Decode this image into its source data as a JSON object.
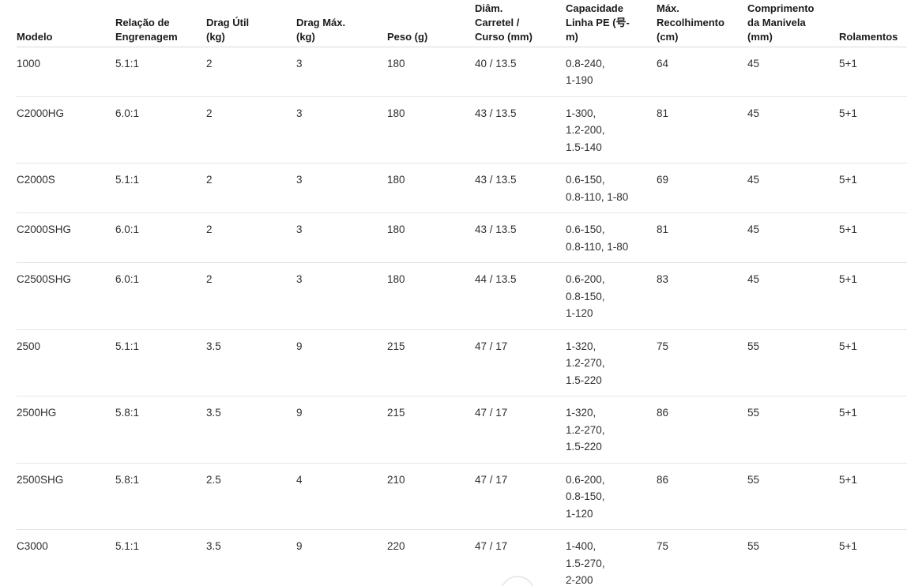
{
  "colors": {
    "background": "#ffffff",
    "header_text": "#1b1b1b",
    "body_text": "#2f2f2f",
    "header_divider": "#d9d9d9",
    "row_divider": "#e5e5e5",
    "widget_ring": "#e9e9e9"
  },
  "widgets": {
    "bottom_circle_icon": "partial-circle"
  },
  "table": {
    "columns": [
      {
        "key": "modelo",
        "label": "Modelo"
      },
      {
        "key": "relacao-engrenagem",
        "label": "Relação de\nEngrenagem"
      },
      {
        "key": "drag-util",
        "label": "Drag Útil\n(kg)"
      },
      {
        "key": "drag-max",
        "label": "Drag Máx.\n(kg)"
      },
      {
        "key": "peso",
        "label": "Peso (g)"
      },
      {
        "key": "diam-carretel-curso",
        "label": "Diâm.\nCarretel /\nCurso (mm)"
      },
      {
        "key": "capacidade-linha-pe",
        "label": "Capacidade\nLinha PE (号-\nm)"
      },
      {
        "key": "max-recolhimento",
        "label": "Máx.\nRecolhimento\n(cm)"
      },
      {
        "key": "comprimento-manivela",
        "label": "Comprimento\nda Manivela\n(mm)"
      },
      {
        "key": "rolamentos",
        "label": "Rolamentos"
      }
    ],
    "rows": [
      {
        "cells": [
          "1000",
          "5.1:1",
          "2",
          "3",
          "180",
          "40 / 13.5",
          "0.8-240,\n1-190",
          "64",
          "45",
          "5+1"
        ]
      },
      {
        "cells": [
          "C2000HG",
          "6.0:1",
          "2",
          "3",
          "180",
          "43 / 13.5",
          "1-300,\n1.2-200,\n1.5-140",
          "81",
          "45",
          "5+1"
        ]
      },
      {
        "cells": [
          "C2000S",
          "5.1:1",
          "2",
          "3",
          "180",
          "43 / 13.5",
          "0.6-150,\n0.8-110, 1-80",
          "69",
          "45",
          "5+1"
        ]
      },
      {
        "cells": [
          "C2000SHG",
          "6.0:1",
          "2",
          "3",
          "180",
          "43 / 13.5",
          "0.6-150,\n0.8-110, 1-80",
          "81",
          "45",
          "5+1"
        ]
      },
      {
        "cells": [
          "C2500SHG",
          "6.0:1",
          "2",
          "3",
          "180",
          "44 / 13.5",
          "0.6-200,\n0.8-150,\n1-120",
          "83",
          "45",
          "5+1"
        ]
      },
      {
        "cells": [
          "2500",
          "5.1:1",
          "3.5",
          "9",
          "215",
          "47 / 17",
          "1-320,\n1.2-270,\n1.5-220",
          "75",
          "55",
          "5+1"
        ]
      },
      {
        "cells": [
          "2500HG",
          "5.8:1",
          "3.5",
          "9",
          "215",
          "47 / 17",
          "1-320,\n1.2-270,\n1.5-220",
          "86",
          "55",
          "5+1"
        ]
      },
      {
        "cells": [
          "2500SHG",
          "5.8:1",
          "2.5",
          "4",
          "210",
          "47 / 17",
          "0.6-200,\n0.8-150,\n1-120",
          "86",
          "55",
          "5+1"
        ]
      },
      {
        "cells": [
          "C3000",
          "5.1:1",
          "3.5",
          "9",
          "220",
          "47 / 17",
          "1-400,\n1.5-270,\n2-200",
          "75",
          "55",
          "5+1"
        ]
      }
    ]
  }
}
